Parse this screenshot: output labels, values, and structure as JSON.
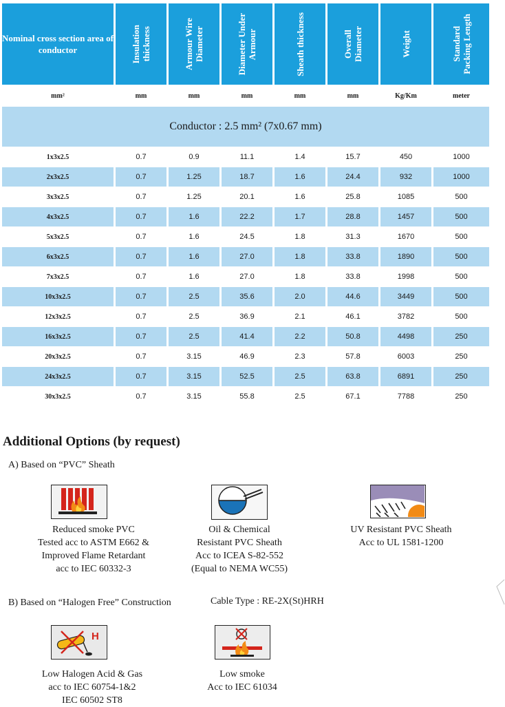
{
  "table": {
    "headers": [
      "Nominal cross section area of conductor",
      "Insulation\nthickness",
      "Armour Wire\nDiameter",
      "Diameter Under\nArmour",
      "Sheath thickness",
      "Overall\nDiameter",
      "Weight",
      "Standard\nPacking Length"
    ],
    "units": [
      "mm²",
      "mm",
      "mm",
      "mm",
      "mm",
      "mm",
      "Kg/Km",
      "meter"
    ],
    "section_title": "Conductor : 2.5 mm² (7x0.67 mm)",
    "rows": [
      [
        "1x3x2.5",
        "0.7",
        "0.9",
        "11.1",
        "1.4",
        "15.7",
        "450",
        "1000"
      ],
      [
        "2x3x2.5",
        "0.7",
        "1.25",
        "18.7",
        "1.6",
        "24.4",
        "932",
        "1000"
      ],
      [
        "3x3x2.5",
        "0.7",
        "1.25",
        "20.1",
        "1.6",
        "25.8",
        "1085",
        "500"
      ],
      [
        "4x3x2.5",
        "0.7",
        "1.6",
        "22.2",
        "1.7",
        "28.8",
        "1457",
        "500"
      ],
      [
        "5x3x2.5",
        "0.7",
        "1.6",
        "24.5",
        "1.8",
        "31.3",
        "1670",
        "500"
      ],
      [
        "6x3x2.5",
        "0.7",
        "1.6",
        "27.0",
        "1.8",
        "33.8",
        "1890",
        "500"
      ],
      [
        "7x3x2.5",
        "0.7",
        "1.6",
        "27.0",
        "1.8",
        "33.8",
        "1998",
        "500"
      ],
      [
        "10x3x2.5",
        "0.7",
        "2.5",
        "35.6",
        "2.0",
        "44.6",
        "3449",
        "500"
      ],
      [
        "12x3x2.5",
        "0.7",
        "2.5",
        "36.9",
        "2.1",
        "46.1",
        "3782",
        "500"
      ],
      [
        "16x3x2.5",
        "0.7",
        "2.5",
        "41.4",
        "2.2",
        "50.8",
        "4498",
        "250"
      ],
      [
        "20x3x2.5",
        "0.7",
        "3.15",
        "46.9",
        "2.3",
        "57.8",
        "6003",
        "250"
      ],
      [
        "24x3x2.5",
        "0.7",
        "3.15",
        "52.5",
        "2.5",
        "63.8",
        "6891",
        "250"
      ],
      [
        "30x3x2.5",
        "0.7",
        "3.15",
        "55.8",
        "2.5",
        "67.1",
        "7788",
        "250"
      ]
    ]
  },
  "options": {
    "title": "Additional Options (by request)",
    "group_a": {
      "label": "A) Based on “PVC” Sheath",
      "items": [
        {
          "icon": "reduced-smoke-icon",
          "text": "Reduced smoke PVC\nTested acc to ASTM E662 &\nImproved Flame Retardant\nacc to IEC 60332-3"
        },
        {
          "icon": "oil-chemical-icon",
          "text": "Oil & Chemical\nResistant PVC Sheath\nAcc to ICEA S-82-552\n(Equal to NEMA WC55)"
        },
        {
          "icon": "uv-resistant-icon",
          "text": "UV Resistant PVC Sheath\nAcc to UL 1581-1200"
        }
      ]
    },
    "group_b": {
      "label": "B) Based on “Halogen Free” Construction",
      "cable_type": "Cable Type : RE-2X(St)HRH",
      "items": [
        {
          "icon": "low-halogen-icon",
          "text": "Low Halogen Acid & Gas\nacc to IEC 60754-1&2\nIEC 60502 ST8",
          "icon_letter": "H"
        },
        {
          "icon": "low-smoke-icon",
          "text": "Low smoke\nAcc to IEC 61034"
        }
      ]
    }
  },
  "colors": {
    "header_blue": "#1b9fdc",
    "row_light_blue": "#b2d9f1"
  }
}
